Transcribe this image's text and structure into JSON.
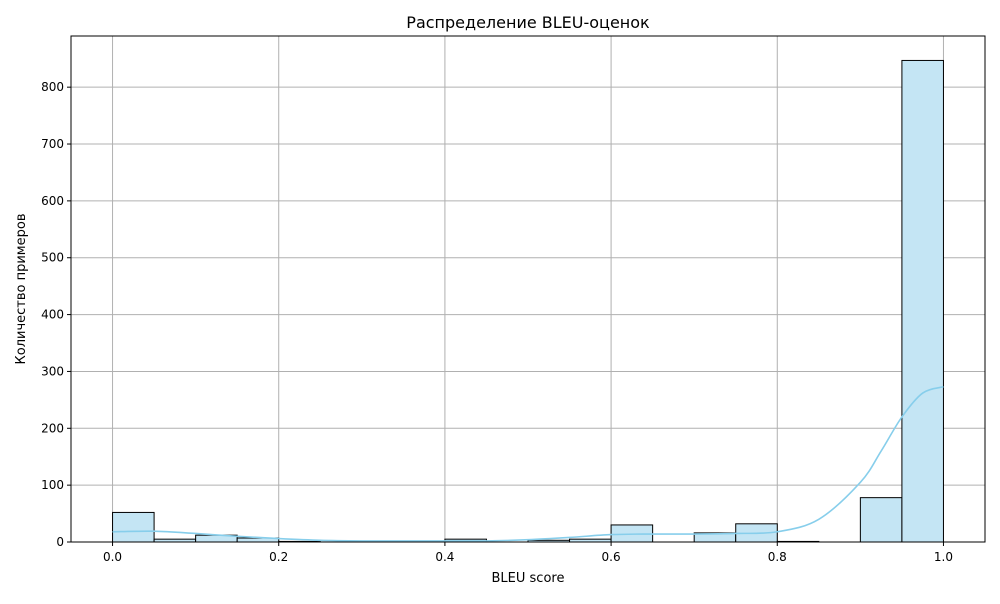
{
  "chart_data": {
    "type": "bar",
    "title": "Распределение BLEU-оценок",
    "xlabel": "BLEU score",
    "ylabel": "Количество примеров",
    "xlim": [
      -0.05,
      1.05
    ],
    "ylim": [
      0,
      890
    ],
    "grid": true,
    "legend": "none",
    "x_ticks": [
      0.0,
      0.2,
      0.4,
      0.6,
      0.8,
      1.0
    ],
    "x_tick_labels": [
      "0.0",
      "0.2",
      "0.4",
      "0.6",
      "0.8",
      "1.0"
    ],
    "y_ticks": [
      0,
      100,
      200,
      300,
      400,
      500,
      600,
      700,
      800
    ],
    "y_tick_labels": [
      "0",
      "100",
      "200",
      "300",
      "400",
      "500",
      "600",
      "700",
      "800"
    ],
    "bin_edges": [
      0.0,
      0.05,
      0.1,
      0.15,
      0.2,
      0.25,
      0.3,
      0.35,
      0.4,
      0.45,
      0.5,
      0.55,
      0.6,
      0.65,
      0.7,
      0.75,
      0.8,
      0.85,
      0.9,
      0.95,
      1.0
    ],
    "counts": [
      52,
      5,
      12,
      7,
      1,
      0,
      0,
      0,
      5,
      0,
      3,
      5,
      30,
      0,
      16,
      32,
      1,
      0,
      78,
      847
    ],
    "kde": {
      "x": [
        0.0,
        0.05,
        0.1,
        0.15,
        0.2,
        0.25,
        0.3,
        0.35,
        0.4,
        0.45,
        0.5,
        0.55,
        0.6,
        0.65,
        0.7,
        0.75,
        0.8,
        0.85,
        0.9,
        0.925,
        0.95,
        0.975,
        1.0
      ],
      "y": [
        18,
        19,
        15,
        10,
        6,
        3,
        2,
        2,
        2,
        2,
        4,
        8,
        13,
        14,
        14,
        15,
        18,
        40,
        105,
        160,
        220,
        262,
        273
      ]
    },
    "colors": {
      "bar_fill": "#c4e5f4",
      "bar_edge": "#000000",
      "kde_line": "#87ceeb",
      "grid": "#b0b0b0"
    }
  }
}
